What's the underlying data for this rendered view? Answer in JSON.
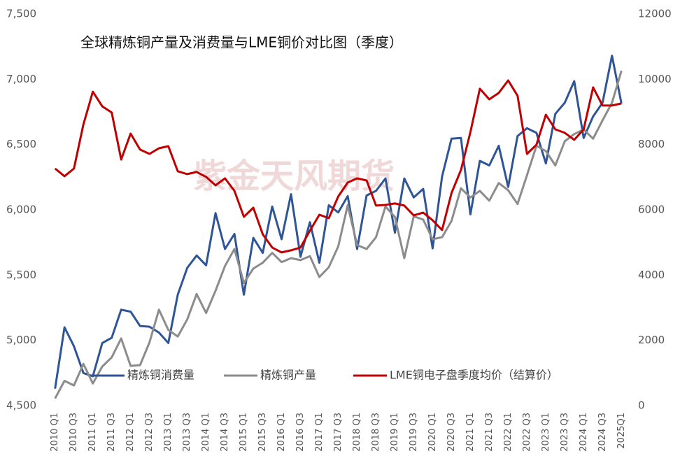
{
  "chart_data": {
    "type": "line",
    "title": "全球精炼铜产量及消费量与LME铜价对比图（季度）",
    "watermark": "紫金天风期货",
    "categories": [
      "2010 Q1",
      null,
      "2010 Q3",
      null,
      "2011 Q1",
      null,
      "2011 Q3",
      null,
      "2012 Q1",
      null,
      "2012 Q3",
      null,
      "2013 Q1",
      null,
      "2013 Q3",
      null,
      "2014 Q1",
      null,
      "2014 Q3",
      null,
      "2015 Q1",
      null,
      "2015 Q3",
      null,
      "2016 Q1",
      null,
      "2016 Q3",
      null,
      "2017 Q1",
      null,
      "2017 Q3",
      null,
      "2018 Q1",
      null,
      "2018 Q3",
      null,
      "2019 Q1",
      null,
      "2019 Q3",
      null,
      "2020 Q1",
      null,
      "2020 Q3",
      null,
      "2021 Q1",
      null,
      "2021 Q3",
      null,
      "2022 Q1",
      null,
      "2022 Q3",
      null,
      "2023 Q1",
      null,
      "2023 Q3",
      null,
      "2024 Q1",
      null,
      "2024 Q3",
      null,
      "2025Q1"
    ],
    "series": [
      {
        "name": "精炼铜消费量",
        "color": "#2f5597",
        "values": [
          4630,
          5100,
          4955,
          4750,
          4725,
          4980,
          5020,
          5235,
          5220,
          5110,
          5105,
          5060,
          4980,
          5350,
          5555,
          5650,
          5575,
          5975,
          5700,
          5815,
          5350,
          5785,
          5670,
          6025,
          5775,
          6120,
          5640,
          5905,
          5595,
          6035,
          5980,
          6105,
          5700,
          6110,
          6145,
          6240,
          5825,
          6240,
          6095,
          6160,
          5705,
          6255,
          6545,
          6550,
          5965,
          6375,
          6340,
          6490,
          6175,
          6565,
          6625,
          6590,
          6355,
          6735,
          6820,
          6985,
          6550,
          6715,
          6820,
          7180,
          6815
        ]
      },
      {
        "name": "精炼铜产量",
        "color": "#8c8c8c",
        "values": [
          4555,
          4690,
          4655,
          4820,
          4670,
          4800,
          4870,
          5015,
          4805,
          4810,
          4985,
          5235,
          5080,
          5030,
          5160,
          5355,
          5210,
          5380,
          5570,
          5700,
          5440,
          5550,
          5595,
          5670,
          5600,
          5630,
          5615,
          5645,
          5485,
          5560,
          5720,
          6035,
          5730,
          5700,
          5790,
          6025,
          5945,
          5630,
          5950,
          5925,
          5775,
          5790,
          5915,
          6165,
          6095,
          6145,
          6070,
          6205,
          6150,
          6045,
          6265,
          6490,
          6450,
          6340,
          6525,
          6580,
          6615,
          6545,
          6685,
          6820,
          7065
        ]
      },
      {
        "name": "LME铜电子盘季度均价（结算价）",
        "color": "#c00000",
        "axis": "y2",
        "values": [
          7265,
          7030,
          7265,
          8615,
          9620,
          9170,
          8980,
          7540,
          8335,
          7845,
          7715,
          7885,
          7950,
          7180,
          7095,
          7160,
          7010,
          6750,
          6965,
          6580,
          5785,
          6065,
          5250,
          4845,
          4695,
          4760,
          4845,
          5360,
          5850,
          5745,
          6410,
          6835,
          6965,
          6900,
          6130,
          6150,
          6195,
          6130,
          5830,
          5915,
          5680,
          5380,
          6515,
          7220,
          8380,
          9710,
          9385,
          9580,
          9965,
          9495,
          7715,
          7995,
          8915,
          8465,
          8360,
          8145,
          8465,
          9750,
          9195,
          9195,
          9260
        ]
      }
    ],
    "ylim": [
      4500,
      7500
    ],
    "yticks": [
      {
        "value": 4500,
        "label": "4,500"
      },
      {
        "value": 5000,
        "label": "5,000"
      },
      {
        "value": 5500,
        "label": "5,500"
      },
      {
        "value": 6000,
        "label": "6,000"
      },
      {
        "value": 6500,
        "label": "6,500"
      },
      {
        "value": 7000,
        "label": "7,000"
      },
      {
        "value": 7500,
        "label": "7,500"
      }
    ],
    "y2lim": [
      0,
      12000
    ],
    "y2ticks": [
      0,
      2000,
      4000,
      6000,
      8000,
      10000,
      12000
    ],
    "grid": false,
    "legend": "bottom"
  }
}
